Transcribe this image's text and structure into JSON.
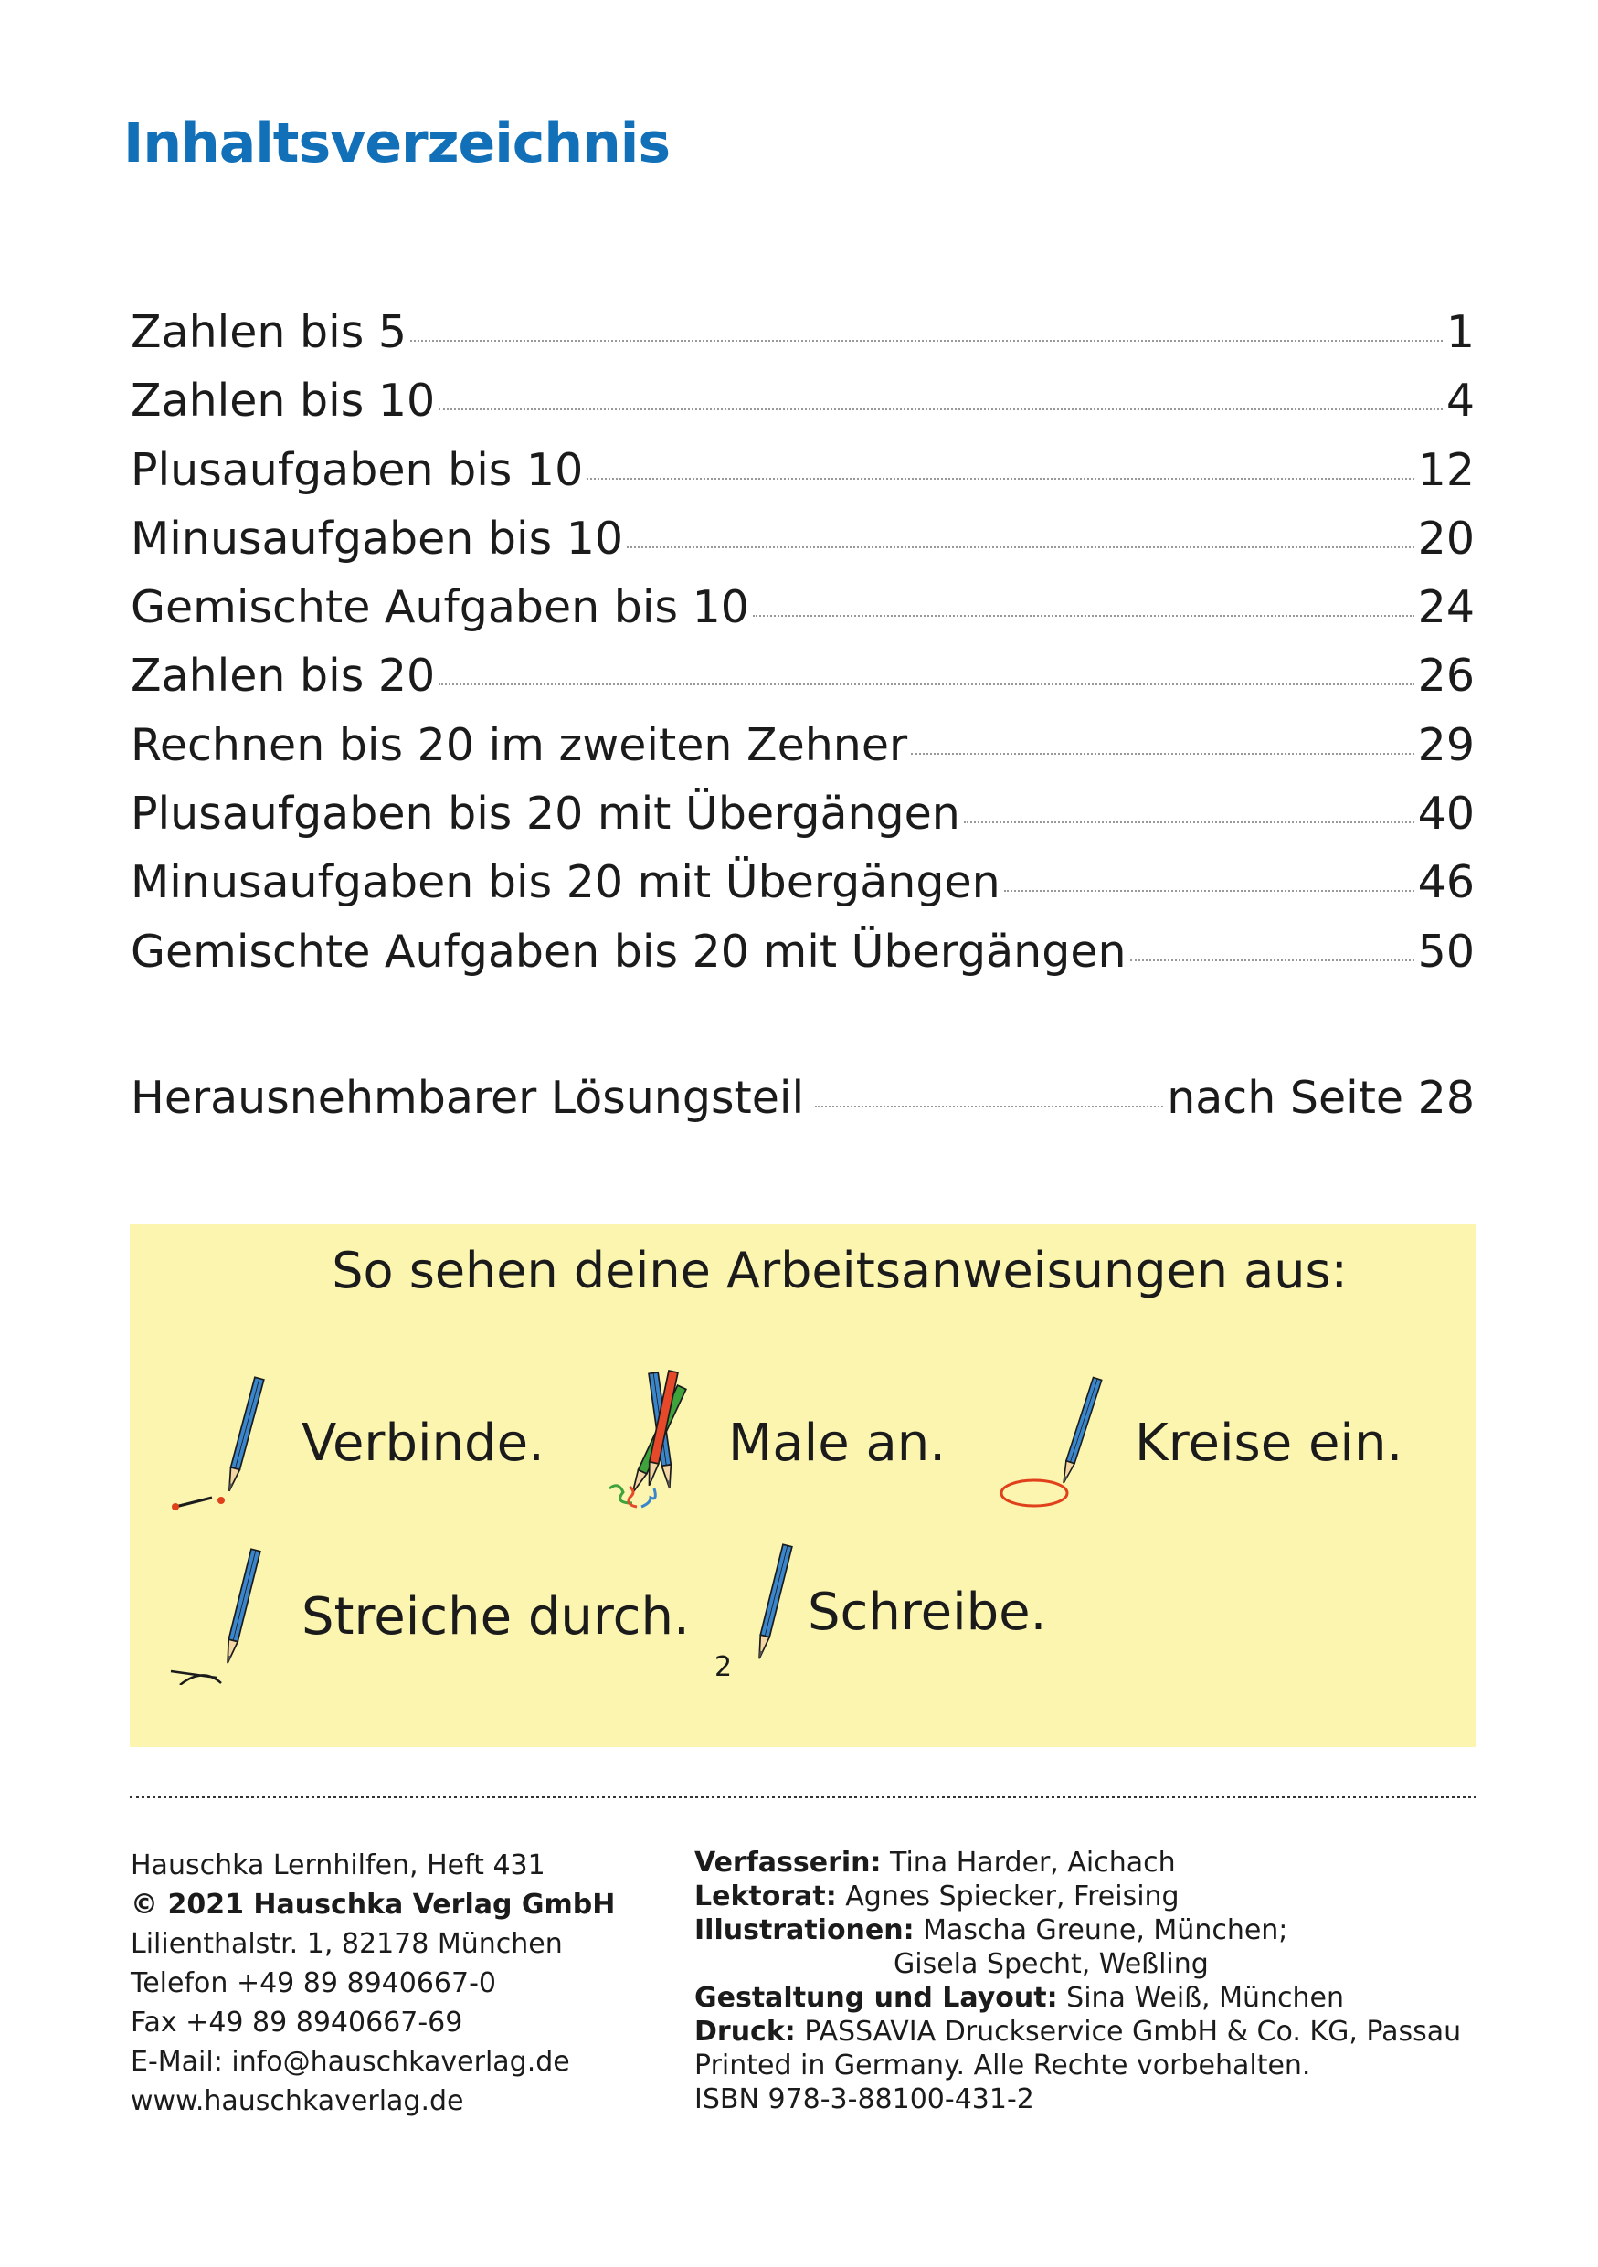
{
  "title": "Inhaltsverzeichnis",
  "toc": [
    {
      "label": "Zahlen bis 5",
      "page": "1"
    },
    {
      "label": "Zahlen bis 10",
      "page": "4"
    },
    {
      "label": "Plusaufgaben bis 10",
      "page": "12"
    },
    {
      "label": "Minusaufgaben bis 10",
      "page": "20"
    },
    {
      "label": "Gemischte Aufgaben bis 10",
      "page": "24"
    },
    {
      "label": "Zahlen bis 20",
      "page": "26"
    },
    {
      "label": "Rechnen bis 20 im zweiten Zehner",
      "page": "29"
    },
    {
      "label": "Plusaufgaben bis 20 mit Übergängen",
      "page": "40"
    },
    {
      "label": "Minusaufgaben bis 20 mit Übergängen",
      "page": "46"
    },
    {
      "label": "Gemischte Aufgaben bis 20 mit Übergängen",
      "page": "50"
    }
  ],
  "solutions": {
    "label": "Herausnehmbarer Lösungsteil",
    "page": "nach Seite 28"
  },
  "instructions": {
    "heading": "So sehen deine Arbeitsanweisungen aus:",
    "items": [
      "Verbinde.",
      "Male an.",
      "Kreise ein.",
      "Streiche durch.",
      "Schreibe."
    ],
    "write_sample": "2"
  },
  "colors": {
    "title": "#1170b8",
    "box": "#fbf5b0"
  },
  "footer": {
    "left": [
      "Hauschka Lernhilfen, Heft 431",
      "© 2021 Hauschka Verlag GmbH",
      "Lilienthalstr. 1, 82178 München",
      "Telefon +49 89 8940667-0",
      "Fax +49 89 8940667-69",
      "E-Mail: info@hauschkaverlag.de",
      "www.hauschkaverlag.de"
    ],
    "right": [
      {
        "k": "Verfasserin:",
        "v": " Tina Harder, Aichach"
      },
      {
        "k": "Lektorat:",
        "v": " Agnes Spiecker, Freising"
      },
      {
        "k": "Illustrationen:",
        "v": " Mascha Greune, München;"
      },
      {
        "v": "Gisela Specht, Weßling"
      },
      {
        "k": "Gestaltung und Layout:",
        "v": " Sina Weiß, München"
      },
      {
        "k": "Druck:",
        "v": " PASSAVIA Druckservice GmbH & Co. KG, Passau"
      },
      {
        "v": "Printed in Germany. Alle Rechte vorbehalten."
      },
      {
        "v": "ISBN 978-3-88100-431-2"
      }
    ]
  }
}
